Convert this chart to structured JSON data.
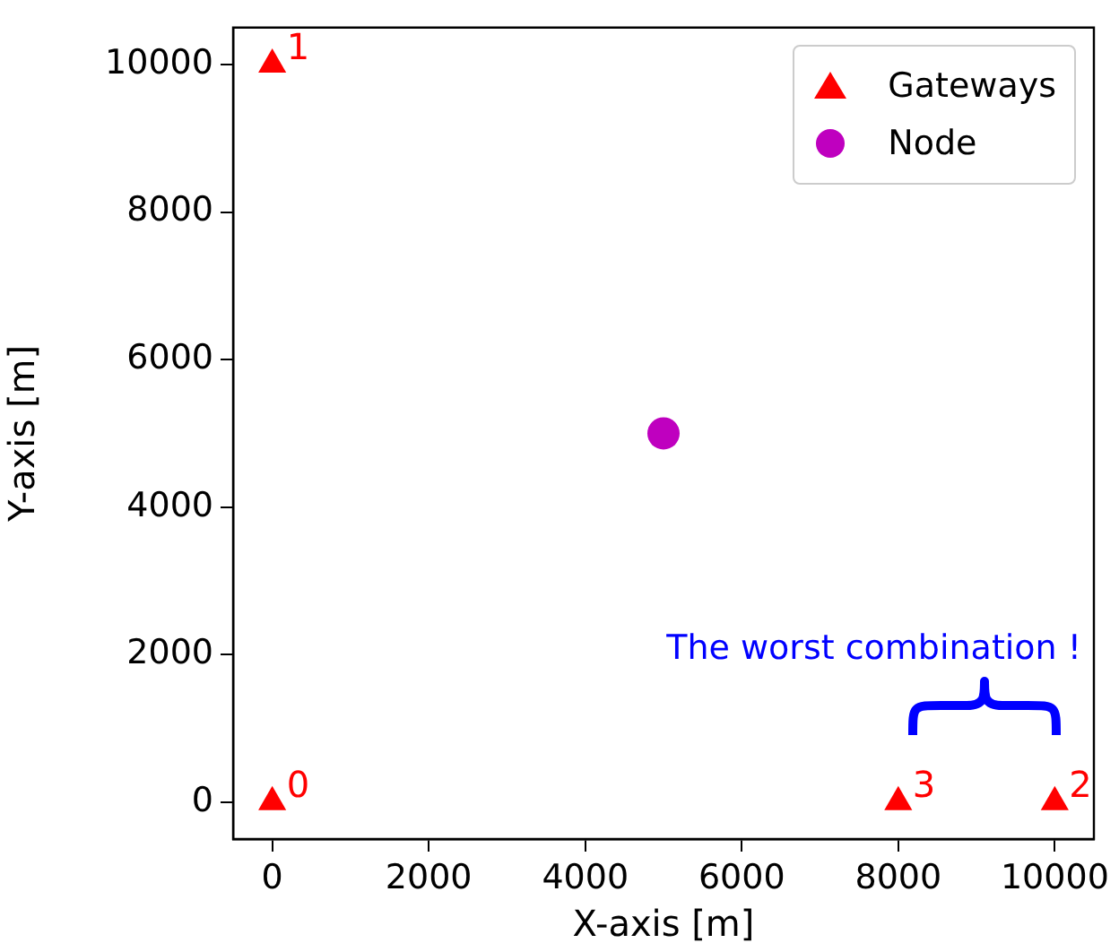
{
  "chart_data": {
    "type": "scatter",
    "xlabel": "X-axis [m]",
    "ylabel": "Y-axis [m]",
    "xlim": [
      -500,
      10500
    ],
    "xticks": [
      0,
      2000,
      4000,
      6000,
      8000,
      10000
    ],
    "ylim": [
      -500,
      10500
    ],
    "yticks": [
      0,
      2000,
      4000,
      6000,
      8000,
      10000
    ],
    "grid": false,
    "legend": "top right",
    "series": [
      {
        "name": "Gateways",
        "color": "#ff0000",
        "marker": "triangle",
        "x": [
          0,
          0,
          10000,
          8000
        ],
        "values": [
          0,
          10000,
          0,
          0
        ]
      },
      {
        "name": "Node",
        "color": "#bf00bf",
        "marker": "circle",
        "x": [
          5000
        ],
        "values": [
          5000
        ]
      }
    ],
    "annotations": [
      {
        "text": "0",
        "x": 0,
        "y": 0
      },
      {
        "text": "1",
        "x": 0,
        "y": 10000
      },
      {
        "text": "2",
        "x": 10000,
        "y": 0
      },
      {
        "text": "3",
        "x": 8000,
        "y": 0
      },
      "The worst combination !"
    ]
  }
}
